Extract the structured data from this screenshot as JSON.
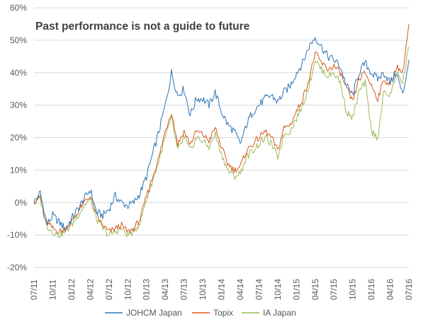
{
  "chart_data": {
    "type": "line",
    "annotation": "Past performance is not a guide to future",
    "xlabel": "",
    "ylabel": "",
    "ylim": [
      -20,
      60
    ],
    "y_ticks": [
      -20,
      -10,
      0,
      10,
      20,
      30,
      40,
      50,
      60
    ],
    "y_tick_labels": [
      "-20%",
      "-10%",
      "0%",
      "10%",
      "20%",
      "30%",
      "40%",
      "50%",
      "60%"
    ],
    "x_tick_labels": [
      "07/11",
      "10/11",
      "01/12",
      "04/12",
      "07/12",
      "10/12",
      "01/13",
      "04/13",
      "07/13",
      "10/13",
      "01/14",
      "04/14",
      "07/14",
      "10/14",
      "01/15",
      "04/15",
      "07/15",
      "10/15",
      "01/16",
      "04/16",
      "07/16"
    ],
    "grid": true,
    "legend_position": "bottom",
    "x": [
      "07/11",
      "08/11",
      "09/11",
      "10/11",
      "11/11",
      "12/11",
      "01/12",
      "02/12",
      "03/12",
      "04/12",
      "05/12",
      "06/12",
      "07/12",
      "08/12",
      "09/12",
      "10/12",
      "11/12",
      "12/12",
      "01/13",
      "02/13",
      "03/13",
      "04/13",
      "05/13",
      "06/13",
      "07/13",
      "08/13",
      "09/13",
      "10/13",
      "11/13",
      "12/13",
      "01/14",
      "02/14",
      "03/14",
      "04/14",
      "05/14",
      "06/14",
      "07/14",
      "08/14",
      "09/14",
      "10/14",
      "11/14",
      "12/14",
      "01/15",
      "02/15",
      "03/15",
      "04/15",
      "05/15",
      "06/15",
      "07/15",
      "08/15",
      "09/15",
      "10/15",
      "11/15",
      "12/15",
      "01/16",
      "02/16",
      "03/16",
      "04/16",
      "05/16",
      "06/16",
      "07/16"
    ],
    "series": [
      {
        "name": "JOHCM Japan",
        "color": "#2e75b6",
        "values": [
          0,
          3,
          -7,
          -4,
          -6,
          -8,
          -5,
          -2,
          1,
          4,
          -3,
          -4,
          -2,
          2,
          0,
          -1,
          0,
          3,
          8,
          15,
          22,
          30,
          40,
          33,
          35,
          27,
          32,
          32,
          30,
          34,
          28,
          24,
          22,
          18,
          24,
          28,
          30,
          32,
          33,
          31,
          34,
          36,
          40,
          43,
          48,
          51,
          48,
          45,
          44,
          42,
          36,
          33,
          40,
          43,
          40,
          38,
          40,
          37,
          40,
          33,
          44
        ]
      },
      {
        "name": "Topix",
        "color": "#d55a1b",
        "values": [
          0,
          2,
          -6,
          -8,
          -9,
          -8,
          -6,
          -3,
          0,
          2,
          -4,
          -7,
          -9,
          -8,
          -7,
          -9,
          -8,
          -5,
          2,
          8,
          14,
          22,
          28,
          18,
          22,
          18,
          22,
          21,
          19,
          23,
          17,
          12,
          10,
          11,
          16,
          18,
          20,
          22,
          20,
          16,
          23,
          24,
          28,
          32,
          38,
          46,
          43,
          41,
          42,
          40,
          35,
          31,
          38,
          40,
          36,
          32,
          38,
          36,
          42,
          40,
          55
        ]
      },
      {
        "name": "IA Japan",
        "color": "#9bbb59",
        "values": [
          0,
          1,
          -7,
          -9,
          -10,
          -9,
          -7,
          -4,
          -1,
          1,
          -5,
          -8,
          -10,
          -9,
          -8,
          -10,
          -9,
          -6,
          1,
          7,
          13,
          20,
          26,
          16,
          20,
          16,
          20,
          19,
          17,
          21,
          15,
          10,
          8,
          9,
          14,
          16,
          18,
          20,
          18,
          14,
          21,
          22,
          26,
          30,
          36,
          44,
          41,
          39,
          40,
          37,
          28,
          26,
          34,
          37,
          22,
          20,
          34,
          33,
          40,
          37,
          48
        ]
      }
    ]
  }
}
